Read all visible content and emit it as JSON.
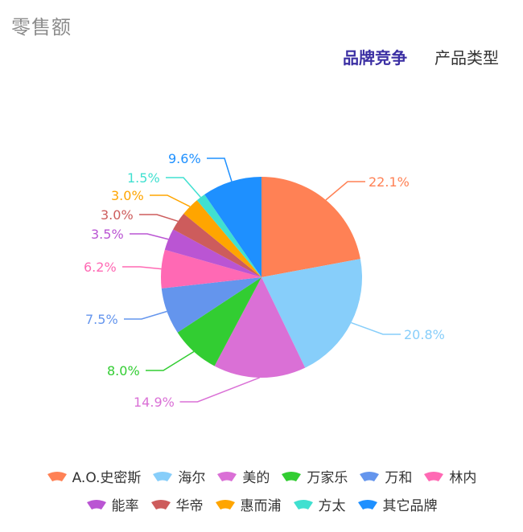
{
  "card": {
    "title": "零售额"
  },
  "tabs": [
    {
      "label": "品牌竞争",
      "active": true
    },
    {
      "label": "产品类型",
      "active": false
    }
  ],
  "chart_data": {
    "type": "pie",
    "title": "",
    "slices": [
      {
        "name": "A.O.史密斯",
        "value": 22.1,
        "label": "22.1%",
        "color": "#ff8155"
      },
      {
        "name": "海尔",
        "value": 20.8,
        "label": "20.8%",
        "color": "#87cefa"
      },
      {
        "name": "美的",
        "value": 14.9,
        "label": "14.9%",
        "color": "#da70d6"
      },
      {
        "name": "万家乐",
        "value": 8.0,
        "label": "8.0%",
        "color": "#32cd32"
      },
      {
        "name": "万和",
        "value": 7.5,
        "label": "7.5%",
        "color": "#6495ed"
      },
      {
        "name": "林内",
        "value": 6.2,
        "label": "6.2%",
        "color": "#ff69b4"
      },
      {
        "name": "能率",
        "value": 3.5,
        "label": "3.5%",
        "color": "#ba55d3"
      },
      {
        "name": "华帝",
        "value": 3.0,
        "label": "3.0%",
        "color": "#cd5c5c"
      },
      {
        "name": "惠而浦",
        "value": 3.0,
        "label": "3.0%",
        "color": "#ffa500"
      },
      {
        "name": "方太",
        "value": 1.5,
        "label": "1.5%",
        "color": "#40e0d0"
      },
      {
        "name": "其它品牌",
        "value": 9.6,
        "label": "9.6%",
        "color": "#1e90ff"
      }
    ],
    "legend_position": "bottom"
  }
}
